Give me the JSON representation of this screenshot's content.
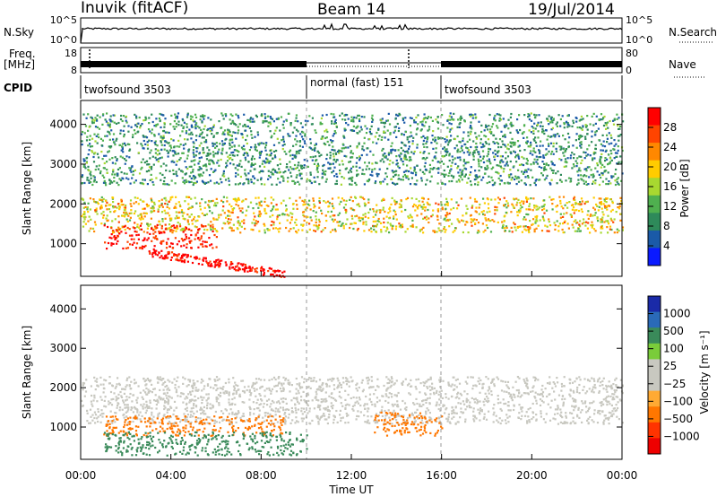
{
  "header": {
    "station": "Inuvik (fitACF)",
    "beam": "Beam 14",
    "date": "19/Jul/2014"
  },
  "nsky_panel": {
    "left_label": "N.Sky",
    "right_label": "N.Search",
    "left_ticks": [
      "10^5",
      "10^0"
    ],
    "right_ticks": [
      "10^5",
      "10^0"
    ]
  },
  "freq_panel": {
    "left_label": "Freq.",
    "left_unit": "[MHz]",
    "right_label": "Nave",
    "left_ticks": [
      "18",
      "8"
    ],
    "right_ticks": [
      "80",
      "0"
    ]
  },
  "cpid_panel": {
    "label": "CPID",
    "segments": [
      {
        "label": "twofsound 3503",
        "start_hour": 0,
        "end_hour": 10
      },
      {
        "label": "normal (fast) 151",
        "start_hour": 10,
        "end_hour": 16
      },
      {
        "label": "twofsound 3503",
        "start_hour": 16,
        "end_hour": 24
      }
    ]
  },
  "power_panel": {
    "ylabel": "Slant Range [km]",
    "colorbar_label": "Power [dB]",
    "colorbar_ticks": [
      "28",
      "24",
      "20",
      "16",
      "12",
      "8",
      "4"
    ],
    "colorbar_colors": [
      "#ff0000",
      "#ff4400",
      "#ff8800",
      "#ffcc00",
      "#a8d830",
      "#4fb04f",
      "#2e8a5a",
      "#1a5aa8",
      "#0a1aff"
    ]
  },
  "velocity_panel": {
    "ylabel": "Slant Range [km]",
    "colorbar_label": "Velocity [m s⁻¹]",
    "colorbar_ticks": [
      "1000",
      "500",
      "100",
      "25",
      "−25",
      "−100",
      "−500",
      "−1000"
    ],
    "colorbar_colors": [
      "#1a2aa8",
      "#2a6ab8",
      "#3a8a5a",
      "#7acc3a",
      "#c8c8c0",
      "#c8c8c0",
      "#ffaa33",
      "#ff7700",
      "#ff3300",
      "#ee0000"
    ]
  },
  "x_axis": {
    "label": "Time UT",
    "ticks": [
      "00:00",
      "04:00",
      "08:00",
      "12:00",
      "16:00",
      "20:00",
      "00:00"
    ]
  },
  "y_axis": {
    "ticks": [
      "4000",
      "3000",
      "2000",
      "1000"
    ]
  },
  "chart_data": [
    {
      "type": "heatmap",
      "title": "Inuvik (fitACF) Beam 14 19/Jul/2014",
      "xlabel": "Time UT",
      "ylabel": "Slant Range [km]",
      "xlim_hours": [
        0,
        24
      ],
      "ylim": [
        180,
        4600
      ],
      "quantity": "Power [dB]",
      "colorbar_range": [
        0,
        30
      ],
      "features": [
        {
          "desc": "main echo band",
          "time_hours": [
            0,
            24
          ],
          "range_km": [
            1300,
            2200
          ],
          "power_db": [
            12,
            24
          ]
        },
        {
          "desc": "strong near-range echoes",
          "time_hours": [
            1,
            6
          ],
          "range_km": [
            900,
            1500
          ],
          "power_db": [
            24,
            30
          ]
        },
        {
          "desc": "descending strong streak",
          "time_hours": [
            3,
            9
          ],
          "range_km": [
            250,
            800
          ],
          "power_db": [
            26,
            30
          ]
        },
        {
          "desc": "sparse far-range scatter",
          "time_hours": [
            0,
            24
          ],
          "range_km": [
            2500,
            4300
          ],
          "power_db": [
            4,
            14
          ]
        }
      ]
    },
    {
      "type": "heatmap",
      "xlabel": "Time UT",
      "ylabel": "Slant Range [km]",
      "xlim_hours": [
        0,
        24
      ],
      "ylim": [
        180,
        4600
      ],
      "quantity": "Velocity [m s⁻¹]",
      "colorbar_range": [
        -1000,
        1000
      ],
      "features": [
        {
          "desc": "ground scatter band (near zero)",
          "time_hours": [
            0,
            24
          ],
          "range_km": [
            1100,
            2300
          ],
          "velocity_ms": [
            -25,
            25
          ]
        },
        {
          "desc": "negative velocities",
          "time_hours": [
            1,
            9
          ],
          "range_km": [
            800,
            1300
          ],
          "velocity_ms": [
            -500,
            -100
          ]
        },
        {
          "desc": "positive velocities near range",
          "time_hours": [
            1,
            10
          ],
          "range_km": [
            300,
            900
          ],
          "velocity_ms": [
            100,
            500
          ]
        },
        {
          "desc": "negative velocity patch",
          "time_hours": [
            13,
            16
          ],
          "range_km": [
            800,
            1400
          ],
          "velocity_ms": [
            -500,
            -100
          ]
        }
      ]
    }
  ]
}
